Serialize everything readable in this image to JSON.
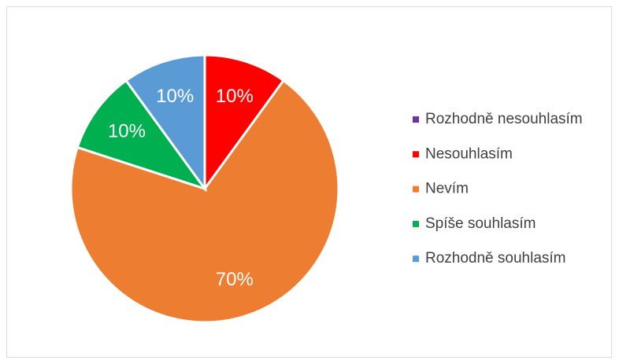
{
  "chart_data": {
    "type": "pie",
    "categories": [
      "Rozhodně nesouhlasím",
      "Nesouhlasím",
      "Nevím",
      "Spíše souhlasím",
      "Rozhodně souhlasím"
    ],
    "values": [
      0,
      10,
      70,
      10,
      10
    ],
    "value_labels": [
      null,
      "10%",
      "70%",
      "10%",
      "10%"
    ],
    "colors": [
      "#7030a0",
      "#ff0000",
      "#ed7d31",
      "#00b050",
      "#5b9bd5"
    ],
    "legend": "right"
  }
}
